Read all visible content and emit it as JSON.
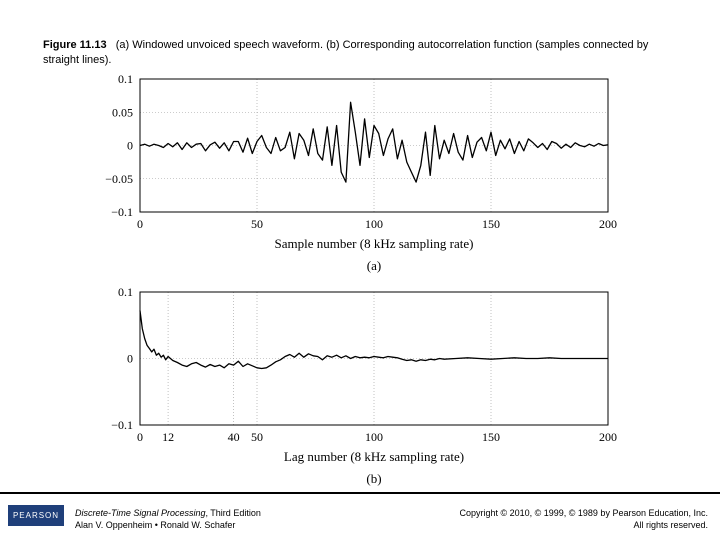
{
  "caption": {
    "label": "Figure 11.13",
    "text": "(a) Windowed unvoiced speech waveform. (b) Corresponding autocorrelation function (samples connected by straight lines)."
  },
  "chart_data": [
    {
      "type": "line",
      "xlim": [
        0,
        200
      ],
      "ylim": [
        -0.1,
        0.1
      ],
      "xticks": [
        0,
        50,
        100,
        150,
        200
      ],
      "yticks": [
        -0.1,
        -0.05,
        0,
        0.05,
        0.1
      ],
      "ytick_labels": [
        "−0.1",
        "−0.05",
        "0",
        "0.05",
        "0.1"
      ],
      "xlabel": "Sample number (8 kHz sampling rate)",
      "panel_label": "(a)",
      "grid": true,
      "series": [
        {
          "name": "windowed unvoiced speech",
          "x": [
            0,
            2,
            4,
            6,
            8,
            10,
            12,
            14,
            16,
            18,
            20,
            22,
            24,
            26,
            28,
            30,
            32,
            34,
            36,
            38,
            40,
            42,
            44,
            46,
            48,
            50,
            52,
            54,
            56,
            58,
            60,
            62,
            64,
            66,
            68,
            70,
            72,
            74,
            76,
            78,
            80,
            82,
            84,
            86,
            88,
            90,
            92,
            94,
            96,
            98,
            100,
            102,
            104,
            106,
            108,
            110,
            112,
            114,
            116,
            118,
            120,
            122,
            124,
            126,
            128,
            130,
            132,
            134,
            136,
            138,
            140,
            142,
            144,
            146,
            148,
            150,
            152,
            154,
            156,
            158,
            160,
            162,
            164,
            166,
            168,
            170,
            172,
            174,
            176,
            178,
            180,
            182,
            184,
            186,
            188,
            190,
            192,
            194,
            196,
            198,
            200
          ],
          "y": [
            0,
            0.002,
            -0.001,
            0.002,
            0,
            -0.003,
            0.003,
            -0.002,
            0.004,
            -0.006,
            0.004,
            -0.003,
            0.002,
            0.003,
            -0.008,
            0.001,
            0.005,
            -0.004,
            0.004,
            -0.008,
            0.006,
            0.006,
            -0.01,
            0.011,
            -0.012,
            0.006,
            0.015,
            -0.003,
            -0.012,
            0.012,
            -0.008,
            -0.003,
            0.02,
            -0.02,
            0.018,
            0.008,
            -0.015,
            0.025,
            -0.012,
            -0.022,
            0.028,
            -0.03,
            0.03,
            -0.04,
            -0.055,
            0.065,
            0.02,
            -0.03,
            0.04,
            -0.018,
            0.03,
            0.018,
            -0.015,
            0.01,
            0.025,
            -0.02,
            0.008,
            -0.025,
            -0.04,
            -0.055,
            -0.03,
            0.02,
            -0.045,
            0.03,
            -0.02,
            0.008,
            -0.012,
            0.018,
            -0.01,
            -0.022,
            0.015,
            -0.018,
            0.005,
            0.012,
            -0.008,
            0.02,
            -0.015,
            0.008,
            -0.005,
            0.01,
            -0.012,
            0.006,
            -0.008,
            0.01,
            0.004,
            -0.003,
            0.003,
            -0.006,
            0.006,
            0.003,
            -0.004,
            0.002,
            -0.003,
            0.004,
            0,
            -0.002,
            0.002,
            -0.001,
            0.003,
            0,
            0.001
          ]
        }
      ]
    },
    {
      "type": "line",
      "xlim": [
        0,
        200
      ],
      "ylim": [
        -0.1,
        0.1
      ],
      "xticks": [
        0,
        12,
        40,
        50,
        100,
        150,
        200
      ],
      "yticks": [
        -0.1,
        0,
        0.1
      ],
      "ytick_labels": [
        "−0.1",
        "0",
        "0.1"
      ],
      "xlabel": "Lag number (8 kHz sampling rate)",
      "panel_label": "(b)",
      "grid": true,
      "series": [
        {
          "name": "autocorrelation",
          "x": [
            0,
            1,
            2,
            3,
            4,
            5,
            6,
            7,
            8,
            9,
            10,
            11,
            12,
            14,
            16,
            18,
            20,
            22,
            24,
            26,
            28,
            30,
            32,
            34,
            36,
            38,
            40,
            42,
            44,
            46,
            48,
            50,
            52,
            54,
            56,
            58,
            60,
            62,
            64,
            66,
            68,
            70,
            72,
            74,
            76,
            78,
            80,
            82,
            84,
            86,
            88,
            90,
            92,
            94,
            96,
            98,
            100,
            102,
            104,
            106,
            108,
            110,
            112,
            114,
            116,
            118,
            120,
            122,
            124,
            126,
            128,
            130,
            135,
            140,
            145,
            150,
            155,
            160,
            165,
            170,
            175,
            180,
            185,
            190,
            195,
            200
          ],
          "y": [
            0.072,
            0.045,
            0.03,
            0.02,
            0.015,
            0.01,
            0.014,
            0.005,
            0.008,
            0.002,
            0.005,
            -0.002,
            0.003,
            -0.003,
            -0.006,
            -0.01,
            -0.012,
            -0.008,
            -0.006,
            -0.01,
            -0.013,
            -0.009,
            -0.012,
            -0.01,
            -0.014,
            -0.008,
            -0.01,
            -0.004,
            -0.012,
            -0.008,
            -0.011,
            -0.014,
            -0.015,
            -0.014,
            -0.01,
            -0.005,
            -0.002,
            0.003,
            0.006,
            0.002,
            0.008,
            0.002,
            0.007,
            0.004,
            0.003,
            -0.002,
            0.004,
            0.002,
            0.005,
            0.001,
            0.004,
            0,
            0.003,
            0.001,
            0.002,
            0.001,
            0.003,
            0.002,
            0.001,
            0.003,
            0.002,
            0.001,
            -0.001,
            -0.003,
            -0.002,
            -0.004,
            -0.002,
            -0.003,
            -0.001,
            -0.002,
            0,
            -0.001,
            0,
            0.001,
            0,
            -0.001,
            0,
            0.001,
            0,
            0,
            0.001,
            0,
            0,
            0,
            0,
            0
          ]
        }
      ]
    }
  ],
  "footer": {
    "logo": "PEARSON",
    "book_title": "Discrete-Time Signal Processing",
    "book_edition": ", Third Edition",
    "authors": "Alan V. Oppenheim • Ronald W. Schafer",
    "copyright": "Copyright © 2010, © 1999, © 1989 by Pearson Education, Inc.",
    "rights": "All rights reserved."
  }
}
